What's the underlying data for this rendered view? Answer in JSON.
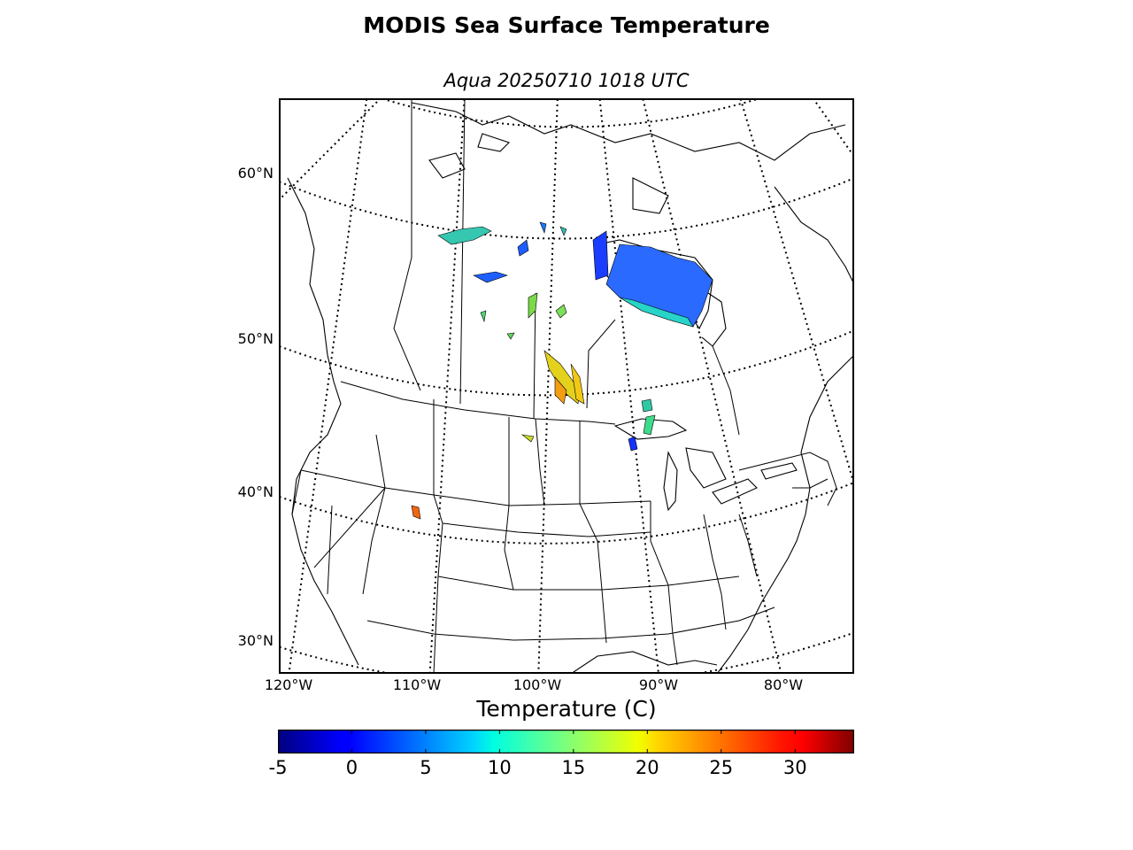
{
  "title": "MODIS Sea Surface Temperature",
  "subtitle": "Aqua 20250710 1018 UTC",
  "colorbar": {
    "label": "Temperature (C)",
    "min": -5,
    "max": 34,
    "ticks": [
      "-5",
      "0",
      "5",
      "10",
      "15",
      "20",
      "25",
      "30"
    ],
    "colormap": "jet"
  },
  "map": {
    "projection": "lambert-conformal",
    "lat_labels": [
      "60°N",
      "50°N",
      "40°N",
      "30°N"
    ],
    "lon_labels": [
      "120°W",
      "110°W",
      "100°W",
      "90°W",
      "80°W"
    ],
    "graticule": "dotted",
    "land_color": "#ffffff",
    "border_color": "#000000"
  }
}
